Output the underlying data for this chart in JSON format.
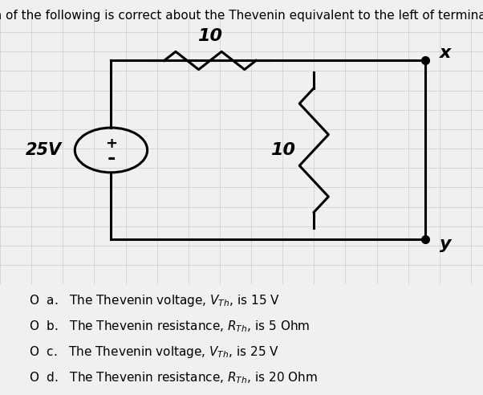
{
  "title": "Which of the following is correct about the Thevenin equivalent to the left of terminal x-y?",
  "title_fontsize": 11,
  "background_color": "#f0f0f0",
  "grid_color": "#cccccc",
  "circuit_color": "black",
  "voltage_source_label": "25V",
  "resistor1_label": "10",
  "resistor2_label": "10",
  "terminal_x": "x",
  "terminal_y": "y"
}
